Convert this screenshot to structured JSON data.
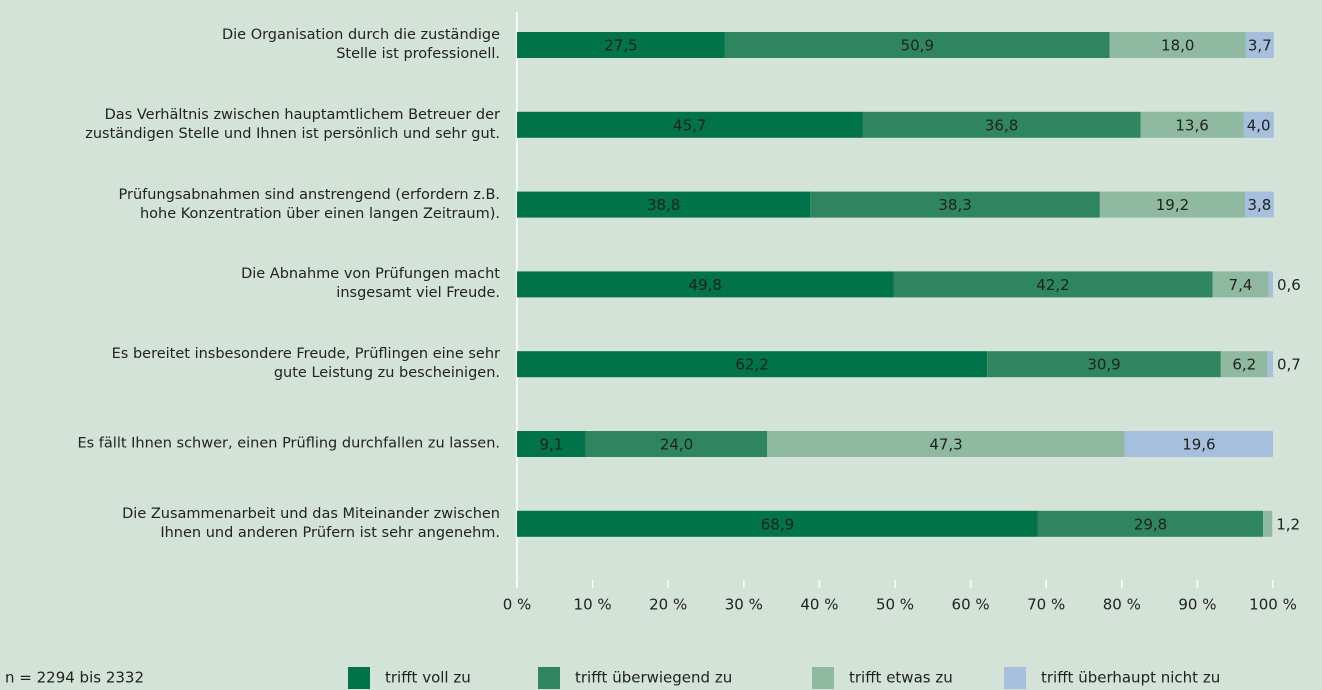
{
  "chart_data": {
    "type": "stacked_bar_horizontal",
    "categories": [
      "Die Organisation durch die zuständige\nStelle ist professionell.",
      "Das Verhältnis zwischen hauptamtlichem Betreuer der\nzuständigen Stelle und Ihnen ist persönlich und sehr gut.",
      "Prüfungsabnahmen sind anstrengend (erfordern z.B.\nhohe Konzentration über einen langen Zeitraum).",
      "Die Abnahme von Prüfungen macht\ninsgesamt viel Freude.",
      "Es bereitet insbesondere Freude, Prüflingen eine sehr\ngute Leistung zu bescheinigen.",
      "Es fällt Ihnen schwer, einen Prüfling durchfallen zu lassen.",
      "Die Zusammenarbeit und das Miteinander zwischen\nIhnen und anderen Prüfern ist sehr angenehm."
    ],
    "series": [
      {
        "name": "trifft voll zu",
        "color": "#00734a",
        "values": [
          27.5,
          45.7,
          38.8,
          49.8,
          62.2,
          9.1,
          68.9
        ],
        "value_labels": [
          "27,5",
          "45,7",
          "38,8",
          "49,8",
          "62,2",
          "9,1",
          "68,9"
        ]
      },
      {
        "name": "trifft überwiegend zu",
        "color": "#2f8560",
        "values": [
          50.9,
          36.8,
          38.3,
          42.2,
          30.9,
          24.0,
          29.8
        ],
        "value_labels": [
          "50,9",
          "36,8",
          "38,3",
          "42,2",
          "30,9",
          "24,0",
          "29,8"
        ]
      },
      {
        "name": "trifft etwas zu",
        "color": "#8fbaa1",
        "values": [
          18.0,
          13.6,
          19.2,
          7.4,
          6.2,
          47.3,
          1.2
        ],
        "value_labels": [
          "18,0",
          "13,6",
          "19,2",
          "7,4",
          "6,2",
          "47,3",
          "1,2"
        ]
      },
      {
        "name": "trifft überhaupt nicht zu",
        "color": "#a5bfdc",
        "values": [
          3.7,
          4.0,
          3.8,
          0.6,
          0.7,
          19.6,
          null
        ],
        "value_labels": [
          "3,7",
          "4,0",
          "3,8",
          "0,6",
          "0,7",
          "19,6",
          null
        ]
      }
    ],
    "xlim": [
      0,
      100
    ],
    "xticks": [
      {
        "value": 0,
        "label": "0 %"
      },
      {
        "value": 10,
        "label": "10 %"
      },
      {
        "value": 20,
        "label": "20 %"
      },
      {
        "value": 30,
        "label": "30 %"
      },
      {
        "value": 40,
        "label": "40 %"
      },
      {
        "value": 50,
        "label": "50 %"
      },
      {
        "value": 60,
        "label": "60 %"
      },
      {
        "value": 70,
        "label": "70 %"
      },
      {
        "value": 80,
        "label": "80 %"
      },
      {
        "value": 90,
        "label": "90 %"
      },
      {
        "value": 100,
        "label": "100 %"
      }
    ],
    "note": "n = 2294 bis 2332",
    "legend": "bottom"
  }
}
